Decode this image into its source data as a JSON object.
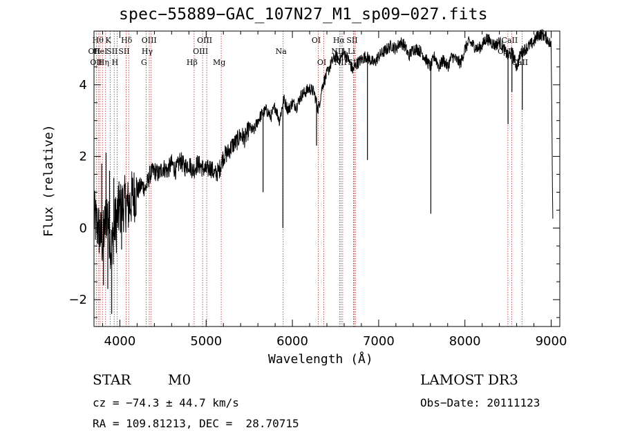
{
  "header": {
    "title": "spec−55889−GAC_107N27_M1_sp09−027.fits"
  },
  "info": {
    "class": "STAR",
    "subclass": "M0",
    "survey": "LAMOST DR3",
    "cz": "cz = −74.3 ± 44.7 km/s",
    "obs_date": "Obs−Date: 20111123",
    "radec": "RA = 109.81213, DEC =  28.70715"
  },
  "chart_data": {
    "type": "line",
    "title": "spec−55889−GAC_107N27_M1_sp09−027.fits",
    "xlabel": "Wavelength (Å)",
    "ylabel": "Flux (relative)",
    "xlim": [
      3700,
      9100
    ],
    "ylim": [
      -2.75,
      5.5
    ],
    "xticks": [
      4000,
      5000,
      6000,
      7000,
      8000,
      9000
    ],
    "yticks": [
      -2,
      0,
      2,
      4
    ],
    "ytick_labels": [
      "−2",
      "0",
      "2",
      "4"
    ],
    "series": [
      {
        "name": "flux",
        "x": [
          3700,
          3750,
          3800,
          3850,
          3900,
          3950,
          4000,
          4050,
          4100,
          4150,
          4200,
          4250,
          4300,
          4350,
          4400,
          4450,
          4500,
          4550,
          4600,
          4650,
          4700,
          4750,
          4800,
          4850,
          4900,
          4950,
          5000,
          5050,
          5100,
          5150,
          5200,
          5250,
          5300,
          5350,
          5400,
          5450,
          5500,
          5550,
          5600,
          5650,
          5700,
          5750,
          5800,
          5850,
          5900,
          5950,
          6000,
          6050,
          6100,
          6150,
          6200,
          6250,
          6300,
          6350,
          6400,
          6450,
          6500,
          6550,
          6600,
          6650,
          6700,
          6750,
          6800,
          6850,
          6900,
          6950,
          7000,
          7050,
          7100,
          7150,
          7200,
          7250,
          7300,
          7350,
          7400,
          7450,
          7500,
          7550,
          7600,
          7650,
          7700,
          7750,
          7800,
          7850,
          7900,
          7950,
          8000,
          8050,
          8100,
          8150,
          8200,
          8250,
          8300,
          8350,
          8400,
          8450,
          8500,
          8550,
          8600,
          8650,
          8700,
          8750,
          8800,
          8850,
          8900,
          8950,
          9000,
          9020
        ],
        "y": [
          0.3,
          0.0,
          -0.4,
          0.5,
          -0.6,
          0.2,
          0.5,
          0.7,
          0.6,
          0.9,
          1.0,
          1.2,
          1.1,
          1.5,
          1.6,
          1.5,
          1.7,
          1.6,
          1.8,
          1.6,
          1.9,
          1.7,
          1.8,
          1.6,
          1.8,
          1.7,
          1.6,
          1.7,
          1.5,
          1.6,
          2.0,
          2.1,
          2.3,
          2.4,
          2.6,
          2.5,
          2.8,
          2.7,
          3.0,
          3.2,
          3.3,
          3.1,
          3.4,
          3.0,
          3.6,
          3.3,
          3.5,
          3.4,
          3.7,
          3.8,
          3.9,
          3.8,
          3.3,
          4.0,
          4.3,
          4.6,
          4.8,
          4.7,
          4.9,
          4.7,
          4.4,
          4.6,
          4.7,
          4.8,
          4.7,
          4.6,
          4.8,
          4.9,
          5.0,
          5.1,
          5.0,
          5.2,
          5.1,
          4.8,
          5.0,
          5.0,
          4.9,
          4.7,
          4.5,
          4.8,
          4.5,
          4.7,
          4.5,
          4.8,
          4.7,
          4.6,
          5.0,
          5.2,
          5.1,
          5.0,
          5.1,
          5.3,
          5.2,
          5.1,
          5.2,
          5.0,
          4.8,
          4.9,
          4.5,
          4.9,
          5.0,
          5.1,
          5.2,
          5.4,
          5.4,
          5.3,
          5.1,
          0.0
        ]
      }
    ],
    "spikes": [
      {
        "x": 3790,
        "y": 1.8
      },
      {
        "x": 3810,
        "y": -1.6
      },
      {
        "x": 3840,
        "y": 2.1
      },
      {
        "x": 3860,
        "y": -1.7
      },
      {
        "x": 3880,
        "y": 1.6
      },
      {
        "x": 3905,
        "y": -2.4
      },
      {
        "x": 3930,
        "y": 1.4
      },
      {
        "x": 3960,
        "y": -0.7
      },
      {
        "x": 3990,
        "y": 1.3
      },
      {
        "x": 4020,
        "y": -0.6
      },
      {
        "x": 5660,
        "y": 1.0
      },
      {
        "x": 5890,
        "y": 0.0
      },
      {
        "x": 6280,
        "y": 2.3
      },
      {
        "x": 6870,
        "y": 1.9
      },
      {
        "x": 7605,
        "y": 0.4
      },
      {
        "x": 8500,
        "y": 2.9
      },
      {
        "x": 8545,
        "y": 3.8
      },
      {
        "x": 8665,
        "y": 3.3
      }
    ],
    "lines": [
      {
        "x": 3727,
        "label": "OII",
        "row": 1
      },
      {
        "x": 3750,
        "label": "OII",
        "row": 2
      },
      {
        "x": 3770,
        "label": "Hθ",
        "row": 0
      },
      {
        "x": 3798,
        "label": "HeI",
        "row": 1
      },
      {
        "x": 3835,
        "label": "Hη",
        "row": 2
      },
      {
        "x": 3889,
        "label": "K",
        "row": 0
      },
      {
        "x": 3934,
        "label": "SII",
        "row": 1
      },
      {
        "x": 3968,
        "label": "H",
        "row": 2
      },
      {
        "x": 4102,
        "label": "Hδ",
        "row": 0
      },
      {
        "x": 4072,
        "label": "SII",
        "row": 1
      },
      {
        "x": 4304,
        "label": "G",
        "row": 2
      },
      {
        "x": 4341,
        "label": "Hγ",
        "row": 1
      },
      {
        "x": 4363,
        "label": "OIII",
        "row": 0
      },
      {
        "x": 4861,
        "label": "Hβ",
        "row": 2
      },
      {
        "x": 4959,
        "label": "OIII",
        "row": 1
      },
      {
        "x": 5007,
        "label": "OIII",
        "row": 0
      },
      {
        "x": 5175,
        "label": "Mg",
        "row": 2
      },
      {
        "x": 5893,
        "label": "Na",
        "row": 1
      },
      {
        "x": 6300,
        "label": "OI",
        "row": 0
      },
      {
        "x": 6364,
        "label": "OI",
        "row": 2
      },
      {
        "x": 6548,
        "label": "NII",
        "row": 1
      },
      {
        "x": 6563,
        "label": "Hα",
        "row": 0
      },
      {
        "x": 6583,
        "label": "NII",
        "row": 2
      },
      {
        "x": 6708,
        "label": "Li",
        "row": 1
      },
      {
        "x": 6716,
        "label": "SII",
        "row": 0
      },
      {
        "x": 6731,
        "label": "SII",
        "row": 2
      },
      {
        "x": 8498,
        "label": "CaII",
        "row": 1
      },
      {
        "x": 8542,
        "label": "CaII",
        "row": 0
      },
      {
        "x": 8662,
        "label": "CaII",
        "row": 2
      }
    ]
  }
}
